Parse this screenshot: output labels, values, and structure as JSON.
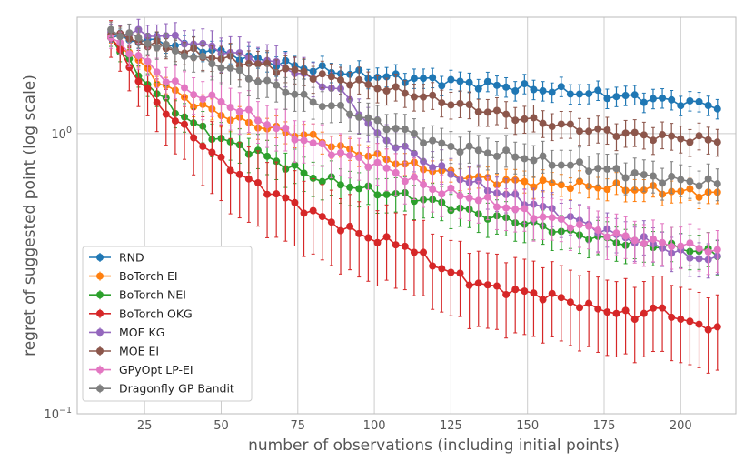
{
  "chart_data": {
    "type": "line",
    "title": "",
    "xlabel": "number of observations (including initial points)",
    "ylabel": "regret of suggested point (log scale)",
    "yscale": "log",
    "xlim": [
      3,
      218
    ],
    "ylim": [
      0.1,
      2.6
    ],
    "x_ticks": [
      25,
      50,
      75,
      100,
      125,
      150,
      175,
      200
    ],
    "y_ticks": [
      {
        "value": 1,
        "label_base": "10",
        "label_exp": "0"
      },
      {
        "value": 0.1,
        "label_base": "10",
        "label_exp": "−1"
      }
    ],
    "grid": true,
    "legend_position": "lower-left",
    "x_start": 14,
    "x_step": 3,
    "num_points": 67,
    "series": [
      {
        "name": "RND",
        "color": "#1f77b4",
        "anchors": [
          [
            14,
            2.2
          ],
          [
            25,
            2.15
          ],
          [
            40,
            2.05
          ],
          [
            60,
            1.85
          ],
          [
            80,
            1.7
          ],
          [
            100,
            1.6
          ],
          [
            120,
            1.55
          ],
          [
            140,
            1.48
          ],
          [
            160,
            1.42
          ],
          [
            180,
            1.36
          ],
          [
            200,
            1.3
          ],
          [
            214,
            1.25
          ]
        ],
        "err_frac": 0.08
      },
      {
        "name": "BoTorch EI",
        "color": "#ff7f0e",
        "anchors": [
          [
            14,
            2.2
          ],
          [
            20,
            1.95
          ],
          [
            25,
            1.72
          ],
          [
            30,
            1.52
          ],
          [
            40,
            1.3
          ],
          [
            50,
            1.17
          ],
          [
            60,
            1.08
          ],
          [
            70,
            1.02
          ],
          [
            80,
            0.97
          ],
          [
            90,
            0.88
          ],
          [
            100,
            0.83
          ],
          [
            110,
            0.78
          ],
          [
            120,
            0.74
          ],
          [
            130,
            0.7
          ],
          [
            140,
            0.68
          ],
          [
            150,
            0.67
          ],
          [
            160,
            0.66
          ],
          [
            180,
            0.64
          ],
          [
            200,
            0.62
          ],
          [
            214,
            0.61
          ]
        ],
        "err_frac": 0.09
      },
      {
        "name": "BoTorch NEI",
        "color": "#2ca02c",
        "anchors": [
          [
            14,
            2.2
          ],
          [
            20,
            1.78
          ],
          [
            25,
            1.55
          ],
          [
            30,
            1.35
          ],
          [
            40,
            1.1
          ],
          [
            50,
            0.95
          ],
          [
            60,
            0.87
          ],
          [
            70,
            0.78
          ],
          [
            80,
            0.7
          ],
          [
            90,
            0.66
          ],
          [
            100,
            0.62
          ],
          [
            110,
            0.6
          ],
          [
            120,
            0.57
          ],
          [
            130,
            0.53
          ],
          [
            140,
            0.5
          ],
          [
            150,
            0.48
          ],
          [
            160,
            0.45
          ],
          [
            170,
            0.43
          ],
          [
            180,
            0.41
          ],
          [
            190,
            0.4
          ],
          [
            200,
            0.39
          ],
          [
            214,
            0.37
          ]
        ],
        "err_frac": 0.14
      },
      {
        "name": "BoTorch OKG",
        "color": "#d62728",
        "anchors": [
          [
            14,
            2.2
          ],
          [
            20,
            1.75
          ],
          [
            25,
            1.45
          ],
          [
            30,
            1.25
          ],
          [
            40,
            1.0
          ],
          [
            50,
            0.8
          ],
          [
            60,
            0.67
          ],
          [
            70,
            0.59
          ],
          [
            80,
            0.52
          ],
          [
            90,
            0.46
          ],
          [
            100,
            0.42
          ],
          [
            110,
            0.4
          ],
          [
            120,
            0.34
          ],
          [
            130,
            0.3
          ],
          [
            140,
            0.28
          ],
          [
            150,
            0.27
          ],
          [
            160,
            0.26
          ],
          [
            170,
            0.24
          ],
          [
            180,
            0.23
          ],
          [
            185,
            0.22
          ],
          [
            190,
            0.24
          ],
          [
            200,
            0.22
          ],
          [
            205,
            0.205
          ],
          [
            214,
            0.205
          ]
        ],
        "err_frac": 0.3
      },
      {
        "name": "MOE KG",
        "color": "#9467bd",
        "anchors": [
          [
            14,
            2.3
          ],
          [
            30,
            2.25
          ],
          [
            45,
            2.05
          ],
          [
            60,
            1.85
          ],
          [
            70,
            1.75
          ],
          [
            80,
            1.55
          ],
          [
            90,
            1.4
          ],
          [
            95,
            1.2
          ],
          [
            100,
            1.0
          ],
          [
            110,
            0.88
          ],
          [
            120,
            0.76
          ],
          [
            130,
            0.68
          ],
          [
            140,
            0.62
          ],
          [
            150,
            0.57
          ],
          [
            160,
            0.52
          ],
          [
            170,
            0.47
          ],
          [
            180,
            0.43
          ],
          [
            190,
            0.41
          ],
          [
            200,
            0.37
          ],
          [
            214,
            0.35
          ]
        ],
        "err_frac": 0.14
      },
      {
        "name": "MOE EI",
        "color": "#8c564b",
        "anchors": [
          [
            14,
            2.25
          ],
          [
            30,
            2.05
          ],
          [
            50,
            1.85
          ],
          [
            70,
            1.7
          ],
          [
            90,
            1.55
          ],
          [
            110,
            1.4
          ],
          [
            130,
            1.25
          ],
          [
            150,
            1.12
          ],
          [
            170,
            1.03
          ],
          [
            190,
            0.98
          ],
          [
            214,
            0.94
          ]
        ],
        "err_frac": 0.11
      },
      {
        "name": "GPyOpt LP-EI",
        "color": "#e377c2",
        "anchors": [
          [
            14,
            2.2
          ],
          [
            25,
            1.82
          ],
          [
            30,
            1.62
          ],
          [
            40,
            1.4
          ],
          [
            50,
            1.3
          ],
          [
            60,
            1.16
          ],
          [
            70,
            1.02
          ],
          [
            80,
            0.92
          ],
          [
            90,
            0.84
          ],
          [
            100,
            0.78
          ],
          [
            110,
            0.7
          ],
          [
            120,
            0.63
          ],
          [
            130,
            0.6
          ],
          [
            140,
            0.56
          ],
          [
            150,
            0.52
          ],
          [
            160,
            0.49
          ],
          [
            170,
            0.46
          ],
          [
            180,
            0.43
          ],
          [
            190,
            0.41
          ],
          [
            200,
            0.4
          ],
          [
            214,
            0.38
          ]
        ],
        "err_frac": 0.17
      },
      {
        "name": "Dragonfly GP Bandit",
        "color": "#7f7f7f",
        "anchors": [
          [
            14,
            2.35
          ],
          [
            30,
            2.05
          ],
          [
            50,
            1.75
          ],
          [
            60,
            1.58
          ],
          [
            70,
            1.45
          ],
          [
            80,
            1.3
          ],
          [
            90,
            1.22
          ],
          [
            100,
            1.1
          ],
          [
            110,
            1.02
          ],
          [
            120,
            0.92
          ],
          [
            130,
            0.88
          ],
          [
            140,
            0.85
          ],
          [
            150,
            0.82
          ],
          [
            160,
            0.78
          ],
          [
            170,
            0.76
          ],
          [
            180,
            0.73
          ],
          [
            190,
            0.7
          ],
          [
            200,
            0.68
          ],
          [
            214,
            0.66
          ]
        ],
        "err_frac": 0.13
      }
    ]
  }
}
